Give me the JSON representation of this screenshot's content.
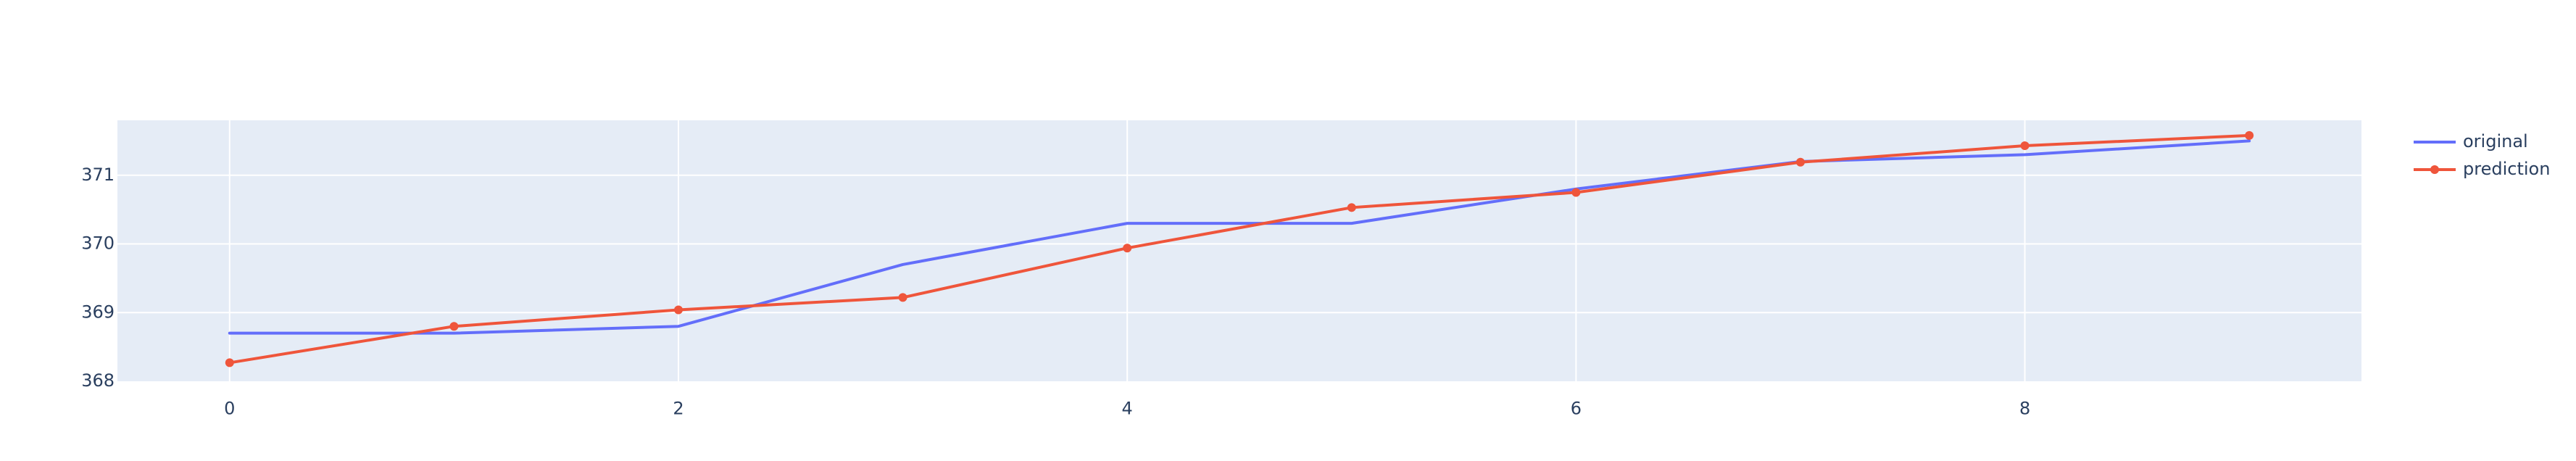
{
  "chart_data": {
    "type": "line",
    "title": "",
    "xlabel": "",
    "ylabel": "",
    "x": [
      0,
      1,
      2,
      3,
      4,
      5,
      6,
      7,
      8,
      9
    ],
    "xlim": [
      -0.5,
      9.5
    ],
    "ylim": [
      368,
      371.8
    ],
    "x_ticks": [
      0,
      2,
      4,
      6,
      8
    ],
    "x_tick_labels": [
      "0",
      "2",
      "4",
      "6",
      "8"
    ],
    "y_ticks": [
      368,
      369,
      370,
      371
    ],
    "y_tick_labels": [
      "368",
      "369",
      "370",
      "371"
    ],
    "grid": true,
    "legend_position": "top-right",
    "series": [
      {
        "name": "original",
        "color": "#636efa",
        "mode": "lines",
        "values": [
          368.7,
          368.7,
          368.8,
          369.7,
          370.3,
          370.3,
          370.8,
          371.2,
          371.3,
          371.5
        ]
      },
      {
        "name": "prediction",
        "color": "#ef553b",
        "mode": "lines+markers",
        "values": [
          368.27,
          368.8,
          369.04,
          369.22,
          369.94,
          370.53,
          370.75,
          371.19,
          371.43,
          371.58
        ]
      }
    ],
    "colors": {
      "plot_background": "#e5ecf6",
      "grid": "#ffffff",
      "text": "#2a3f5f"
    }
  }
}
